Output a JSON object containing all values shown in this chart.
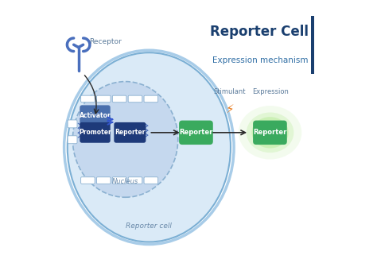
{
  "title": "Reporter Cell",
  "subtitle": "Expression mechanism",
  "title_color": "#1a3f6f",
  "subtitle_color": "#2e6da4",
  "bg_color": "#ffffff",
  "cell_outer_fill": "#daeaf7",
  "cell_outer_edge": "#7bafd4",
  "cell_outer_edge2": "#a8cce8",
  "nucleus_fill": "#c5d8ee",
  "nucleus_edge": "#8ab0d0",
  "activator_color": "#4a6fad",
  "promoter_color": "#1e3a7a",
  "reporter_dna_color": "#1e3a7a",
  "reporter_protein_color": "#3aaa5e",
  "reporter_glow_color": "#90e060",
  "arrow_color": "#2a2a2a",
  "receptor_color": "#4a6fbd",
  "stimulant_color": "#e87c20",
  "text_label_color": "#5a7a9a",
  "nucleus_label_color": "#6a8aaa",
  "cell_label_color": "#6a8aaa",
  "labels": {
    "receptor": "Receptor",
    "activator": "Activator",
    "promoter": "Promoter",
    "reporter_dna": "Reporter",
    "reporter_protein": "Reporter",
    "reporter_expressed": "Reporter",
    "nucleus": "Nucleus",
    "cell": "Reporter cell",
    "stimulant": "Stimulant",
    "expression": "Expression"
  }
}
